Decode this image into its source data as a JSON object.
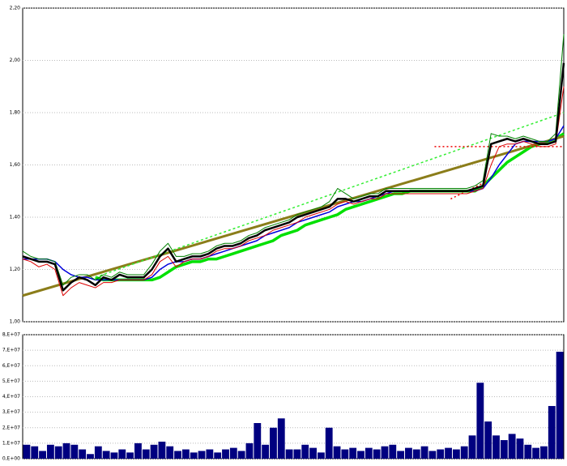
{
  "chart_data": [
    {
      "type": "line",
      "ylim": [
        1.0,
        2.2
      ],
      "yticks": [
        {
          "value": 1.0,
          "label": "1,00"
        },
        {
          "value": 1.2,
          "label": "1,20"
        },
        {
          "value": 1.4,
          "label": "1,40"
        },
        {
          "value": 1.6,
          "label": "1,60"
        },
        {
          "value": 1.8,
          "label": "1,80"
        },
        {
          "value": 2.0,
          "label": "2,00"
        },
        {
          "value": 2.2,
          "label": "2,20"
        }
      ],
      "grid": true,
      "series": [
        {
          "color": "#00e000",
          "width": 3.5,
          "values": [
            null,
            null,
            null,
            null,
            null,
            null,
            null,
            null,
            null,
            1.17,
            1.16,
            1.16,
            1.16,
            1.16,
            1.16,
            1.16,
            1.16,
            1.17,
            1.19,
            1.21,
            1.22,
            1.23,
            1.23,
            1.24,
            1.24,
            1.25,
            1.26,
            1.27,
            1.28,
            1.29,
            1.3,
            1.31,
            1.33,
            1.34,
            1.35,
            1.37,
            1.38,
            1.39,
            1.4,
            1.41,
            1.43,
            1.44,
            1.45,
            1.46,
            1.47,
            1.48,
            1.49,
            1.49,
            1.5,
            1.5,
            1.5,
            1.5,
            1.5,
            1.5,
            1.5,
            1.5,
            1.5,
            1.52,
            1.55,
            1.58,
            1.61,
            1.63,
            1.65,
            1.67,
            1.68,
            1.69,
            1.7,
            1.72
          ]
        },
        {
          "color": "#0000dd",
          "width": 1.5,
          "values": [
            1.24,
            1.24,
            1.24,
            1.24,
            1.23,
            1.2,
            1.18,
            1.17,
            1.17,
            1.16,
            1.16,
            1.16,
            1.16,
            1.16,
            1.16,
            1.16,
            1.17,
            1.2,
            1.22,
            1.23,
            1.23,
            1.24,
            1.24,
            1.25,
            1.26,
            1.27,
            1.28,
            1.29,
            1.3,
            1.31,
            1.33,
            1.34,
            1.35,
            1.36,
            1.38,
            1.39,
            1.4,
            1.41,
            1.42,
            1.44,
            1.45,
            1.46,
            1.46,
            1.47,
            1.48,
            1.49,
            1.5,
            1.5,
            1.5,
            1.5,
            1.5,
            1.5,
            1.5,
            1.5,
            1.5,
            1.5,
            1.5,
            1.51,
            1.55,
            1.6,
            1.64,
            1.68,
            1.69,
            1.69,
            1.69,
            1.69,
            1.7,
            1.75
          ]
        },
        {
          "color": "#dd0000",
          "width": 1,
          "values": [
            1.24,
            1.23,
            1.21,
            1.22,
            1.2,
            1.1,
            1.13,
            1.15,
            1.14,
            1.13,
            1.15,
            1.15,
            1.16,
            1.16,
            1.16,
            1.16,
            1.18,
            1.23,
            1.25,
            1.21,
            1.23,
            1.24,
            1.24,
            1.25,
            1.27,
            1.28,
            1.28,
            1.29,
            1.31,
            1.32,
            1.33,
            1.35,
            1.36,
            1.37,
            1.38,
            1.4,
            1.41,
            1.42,
            1.43,
            1.45,
            1.46,
            1.45,
            1.46,
            1.47,
            1.47,
            1.49,
            1.49,
            1.49,
            1.49,
            1.49,
            1.49,
            1.49,
            1.49,
            1.49,
            1.49,
            1.49,
            1.5,
            1.51,
            1.6,
            1.67,
            1.68,
            1.68,
            1.69,
            1.68,
            1.67,
            1.67,
            1.68,
            1.9
          ]
        },
        {
          "color": "#008000",
          "width": 1,
          "values": [
            1.27,
            1.25,
            1.24,
            1.24,
            1.23,
            1.14,
            1.17,
            1.18,
            1.18,
            1.16,
            1.18,
            1.17,
            1.19,
            1.18,
            1.18,
            1.18,
            1.22,
            1.27,
            1.3,
            1.25,
            1.25,
            1.26,
            1.26,
            1.27,
            1.29,
            1.3,
            1.3,
            1.31,
            1.33,
            1.34,
            1.36,
            1.37,
            1.38,
            1.39,
            1.41,
            1.42,
            1.43,
            1.44,
            1.46,
            1.51,
            1.49,
            1.47,
            1.48,
            1.49,
            1.49,
            1.51,
            1.51,
            1.51,
            1.51,
            1.51,
            1.51,
            1.51,
            1.51,
            1.51,
            1.51,
            1.51,
            1.52,
            1.54,
            1.72,
            1.71,
            1.71,
            1.7,
            1.71,
            1.7,
            1.69,
            1.69,
            1.72,
            2.1
          ]
        },
        {
          "color": "#000000",
          "width": 2.5,
          "values": [
            1.25,
            1.24,
            1.23,
            1.23,
            1.22,
            1.12,
            1.15,
            1.17,
            1.16,
            1.14,
            1.17,
            1.16,
            1.18,
            1.17,
            1.17,
            1.17,
            1.2,
            1.25,
            1.28,
            1.23,
            1.24,
            1.25,
            1.25,
            1.26,
            1.28,
            1.29,
            1.29,
            1.3,
            1.32,
            1.33,
            1.35,
            1.36,
            1.37,
            1.38,
            1.4,
            1.41,
            1.42,
            1.43,
            1.44,
            1.47,
            1.47,
            1.46,
            1.47,
            1.48,
            1.48,
            1.5,
            1.5,
            1.5,
            1.5,
            1.5,
            1.5,
            1.5,
            1.5,
            1.5,
            1.5,
            1.5,
            1.51,
            1.52,
            1.68,
            1.69,
            1.7,
            1.69,
            1.7,
            1.69,
            1.68,
            1.68,
            1.69,
            1.99
          ]
        }
      ],
      "trendlines": [
        {
          "color": "#8b7d1a",
          "width": 3,
          "dash": "none",
          "x": [
            0,
            67
          ],
          "values": [
            1.1,
            1.71
          ]
        },
        {
          "color": "#33ee33",
          "width": 1.5,
          "dash": "3 3",
          "x": [
            9,
            67
          ],
          "values": [
            1.17,
            1.8
          ]
        },
        {
          "color": "#ee0000",
          "width": 1.5,
          "dash": "2 3",
          "x": [
            51,
            67
          ],
          "values": [
            1.67,
            1.67
          ]
        },
        {
          "color": "#ee0000",
          "width": 1.5,
          "dash": "2 3",
          "x": [
            53,
            57
          ],
          "values": [
            1.47,
            1.53
          ]
        }
      ]
    },
    {
      "type": "bar",
      "ylim": [
        0,
        80000000
      ],
      "yticks": [
        {
          "value": 0,
          "label": "0,E+00"
        },
        {
          "value": 10000000,
          "label": "1,E+07"
        },
        {
          "value": 20000000,
          "label": "2,E+07"
        },
        {
          "value": 30000000,
          "label": "3,E+07"
        },
        {
          "value": 40000000,
          "label": "4,E+07"
        },
        {
          "value": 50000000,
          "label": "5,E+07"
        },
        {
          "value": 60000000,
          "label": "6,E+07"
        },
        {
          "value": 70000000,
          "label": "7,E+07"
        },
        {
          "value": 80000000,
          "label": "8,E+07"
        }
      ],
      "grid": true,
      "color": "#000080",
      "values": [
        9000000,
        8000000,
        5000000,
        9000000,
        8000000,
        10000000,
        9000000,
        6000000,
        3000000,
        8000000,
        5000000,
        4000000,
        6000000,
        4000000,
        10000000,
        6000000,
        9000000,
        11000000,
        8000000,
        5000000,
        6000000,
        4000000,
        5000000,
        6000000,
        4000000,
        6000000,
        7000000,
        5000000,
        10000000,
        23000000,
        9000000,
        20000000,
        26000000,
        6000000,
        6000000,
        9000000,
        7000000,
        4000000,
        20000000,
        8000000,
        6000000,
        7000000,
        5000000,
        7000000,
        6000000,
        8000000,
        9000000,
        5000000,
        7000000,
        6000000,
        8000000,
        5000000,
        6000000,
        7000000,
        6000000,
        8000000,
        15000000,
        49000000,
        24000000,
        15000000,
        12000000,
        16000000,
        13000000,
        9000000,
        7000000,
        8000000,
        34000000,
        69000000
      ]
    }
  ]
}
